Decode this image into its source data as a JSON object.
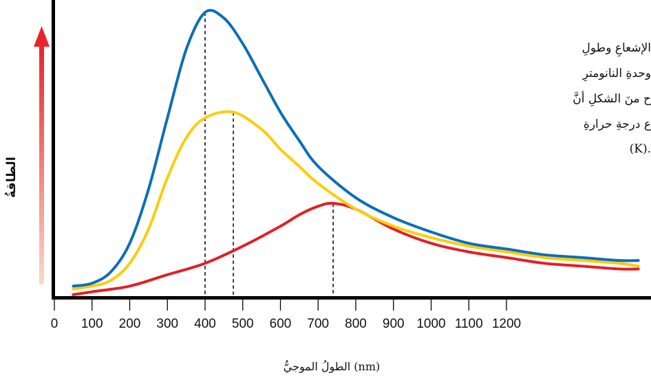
{
  "chart_data": {
    "type": "line",
    "xlabel": "الطولُ الموجيُّ (nm)",
    "ylabel": "الطاقةُ",
    "x_ticks": [
      0,
      100,
      200,
      300,
      400,
      500,
      600,
      700,
      800,
      900,
      1000,
      1100,
      1200
    ],
    "xlim": [
      0,
      1550
    ],
    "ylim": [
      0,
      1
    ],
    "y_axis_arrow_colors": [
      "#e8242a",
      "#fbd9c8"
    ],
    "series": [
      {
        "color": "#0b6fb8",
        "peak_x": 400,
        "x": [
          50,
          100,
          150,
          200,
          250,
          300,
          350,
          400,
          450,
          500,
          550,
          600,
          650,
          700,
          800,
          900,
          1000,
          1100,
          1200,
          1300,
          1400,
          1500,
          1550
        ],
        "y": [
          0.04,
          0.05,
          0.09,
          0.19,
          0.38,
          0.63,
          0.87,
          1.0,
          0.98,
          0.89,
          0.77,
          0.65,
          0.55,
          0.46,
          0.35,
          0.28,
          0.23,
          0.19,
          0.17,
          0.15,
          0.14,
          0.13,
          0.13
        ]
      },
      {
        "color": "#ffcc0a",
        "peak_x": 475,
        "x": [
          50,
          100,
          150,
          200,
          250,
          300,
          350,
          400,
          475,
          550,
          600,
          650,
          700,
          800,
          900,
          1000,
          1100,
          1200,
          1300,
          1400,
          1500,
          1550
        ],
        "y": [
          0.03,
          0.04,
          0.06,
          0.12,
          0.24,
          0.42,
          0.56,
          0.63,
          0.65,
          0.59,
          0.52,
          0.46,
          0.4,
          0.31,
          0.25,
          0.21,
          0.18,
          0.16,
          0.14,
          0.13,
          0.12,
          0.11
        ]
      },
      {
        "color": "#e41e26",
        "peak_x": 740,
        "x": [
          50,
          100,
          200,
          300,
          400,
          500,
          600,
          650,
          700,
          740,
          800,
          900,
          1000,
          1100,
          1200,
          1300,
          1400,
          1500,
          1550
        ],
        "y": [
          0.01,
          0.02,
          0.04,
          0.08,
          0.12,
          0.18,
          0.25,
          0.29,
          0.32,
          0.33,
          0.31,
          0.24,
          0.19,
          0.16,
          0.14,
          0.12,
          0.11,
          0.1,
          0.1
        ]
      }
    ]
  },
  "note": {
    "lines": [
      "الإشعاعِ وطولِ",
      "وحدةِ النانومترِ",
      "ح منَ الشكلِ أنَّ",
      "ع درجةِ حرارةِ",
      "(K)."
    ]
  }
}
